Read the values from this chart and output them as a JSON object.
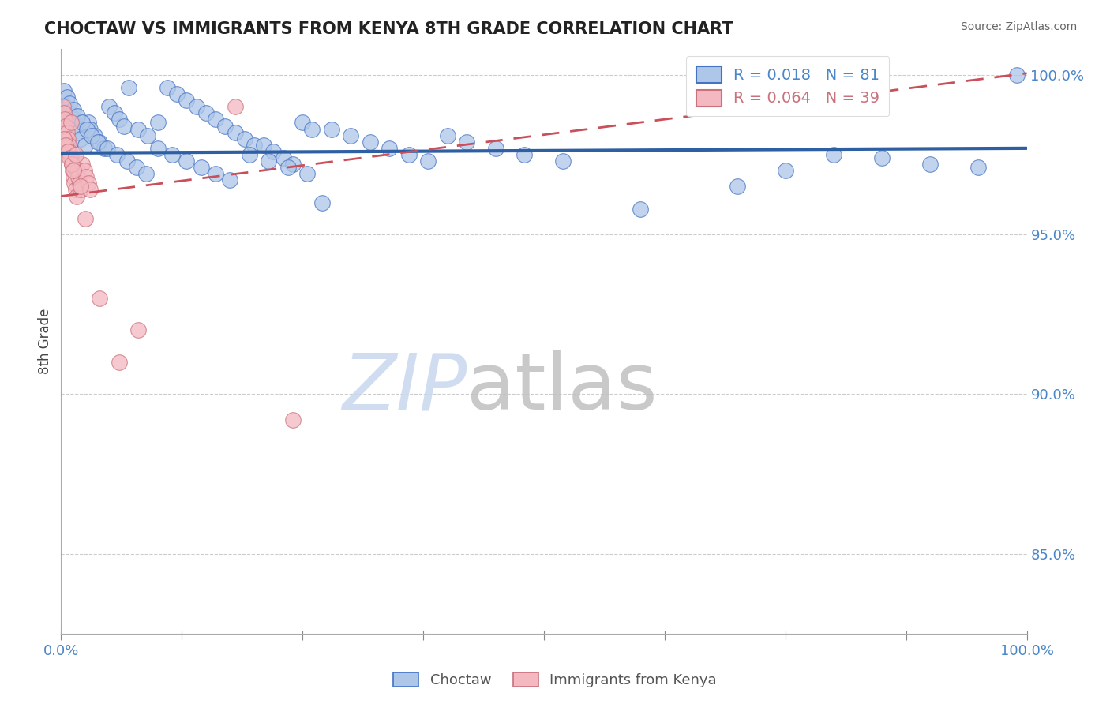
{
  "title": "CHOCTAW VS IMMIGRANTS FROM KENYA 8TH GRADE CORRELATION CHART",
  "source": "Source: ZipAtlas.com",
  "ylabel": "8th Grade",
  "xlim": [
    0.0,
    1.0
  ],
  "ylim": [
    0.825,
    1.008
  ],
  "yticks": [
    0.85,
    0.9,
    0.95,
    1.0
  ],
  "ytick_labels": [
    "85.0%",
    "90.0%",
    "95.0%",
    "100.0%"
  ],
  "xtick_labels_show": [
    "0.0%",
    "100.0%"
  ],
  "legend_blue_r": "0.018",
  "legend_blue_n": "81",
  "legend_pink_r": "0.064",
  "legend_pink_n": "39",
  "blue_fill": "#aec6e8",
  "blue_edge": "#4472c4",
  "pink_fill": "#f4b8c1",
  "pink_edge": "#c9717d",
  "blue_line_color": "#2e5fa3",
  "pink_line_color": "#c94f5a",
  "title_color": "#222222",
  "axis_tick_color": "#4a86c8",
  "watermark_zip_color": "#c8d8ee",
  "watermark_atlas_color": "#c0c0c0",
  "blue_trend_x": [
    0.0,
    1.0
  ],
  "blue_trend_y": [
    0.9755,
    0.977
  ],
  "pink_trend_x": [
    0.0,
    1.0
  ],
  "pink_trend_y": [
    0.962,
    1.0005
  ],
  "blue_scatter_x": [
    0.005,
    0.008,
    0.01,
    0.012,
    0.015,
    0.018,
    0.02,
    0.025,
    0.028,
    0.03,
    0.035,
    0.04,
    0.045,
    0.05,
    0.055,
    0.06,
    0.065,
    0.07,
    0.08,
    0.09,
    0.1,
    0.11,
    0.12,
    0.13,
    0.14,
    0.15,
    0.16,
    0.17,
    0.18,
    0.19,
    0.2,
    0.21,
    0.22,
    0.23,
    0.24,
    0.25,
    0.26,
    0.28,
    0.3,
    0.32,
    0.34,
    0.36,
    0.38,
    0.4,
    0.42,
    0.45,
    0.48,
    0.52,
    0.6,
    0.7,
    0.75,
    0.8,
    0.85,
    0.9,
    0.95,
    0.99,
    0.003,
    0.006,
    0.009,
    0.013,
    0.017,
    0.022,
    0.027,
    0.032,
    0.038,
    0.048,
    0.058,
    0.068,
    0.078,
    0.088,
    0.1,
    0.115,
    0.13,
    0.145,
    0.16,
    0.175,
    0.195,
    0.215,
    0.235,
    0.255,
    0.27
  ],
  "blue_scatter_y": [
    0.99,
    0.988,
    0.987,
    0.986,
    0.984,
    0.982,
    0.98,
    0.978,
    0.985,
    0.983,
    0.981,
    0.979,
    0.977,
    0.99,
    0.988,
    0.986,
    0.984,
    0.996,
    0.983,
    0.981,
    0.985,
    0.996,
    0.994,
    0.992,
    0.99,
    0.988,
    0.986,
    0.984,
    0.982,
    0.98,
    0.978,
    0.978,
    0.976,
    0.974,
    0.972,
    0.985,
    0.983,
    0.983,
    0.981,
    0.979,
    0.977,
    0.975,
    0.973,
    0.981,
    0.979,
    0.977,
    0.975,
    0.973,
    0.958,
    0.965,
    0.97,
    0.975,
    0.974,
    0.972,
    0.971,
    1.0,
    0.995,
    0.993,
    0.991,
    0.989,
    0.987,
    0.985,
    0.983,
    0.981,
    0.979,
    0.977,
    0.975,
    0.973,
    0.971,
    0.969,
    0.977,
    0.975,
    0.973,
    0.971,
    0.969,
    0.967,
    0.975,
    0.973,
    0.971,
    0.969,
    0.96
  ],
  "pink_scatter_x": [
    0.002,
    0.003,
    0.004,
    0.005,
    0.006,
    0.007,
    0.008,
    0.009,
    0.01,
    0.011,
    0.012,
    0.013,
    0.014,
    0.015,
    0.016,
    0.017,
    0.018,
    0.019,
    0.02,
    0.022,
    0.024,
    0.026,
    0.028,
    0.03,
    0.003,
    0.005,
    0.007,
    0.009,
    0.011,
    0.013,
    0.04,
    0.06,
    0.08,
    0.18,
    0.24,
    0.01,
    0.015,
    0.02,
    0.025
  ],
  "pink_scatter_y": [
    0.99,
    0.988,
    0.986,
    0.984,
    0.982,
    0.98,
    0.978,
    0.976,
    0.974,
    0.972,
    0.97,
    0.968,
    0.966,
    0.964,
    0.962,
    0.97,
    0.968,
    0.966,
    0.964,
    0.972,
    0.97,
    0.968,
    0.966,
    0.964,
    0.98,
    0.978,
    0.976,
    0.974,
    0.972,
    0.97,
    0.93,
    0.91,
    0.92,
    0.99,
    0.892,
    0.985,
    0.975,
    0.965,
    0.955
  ]
}
